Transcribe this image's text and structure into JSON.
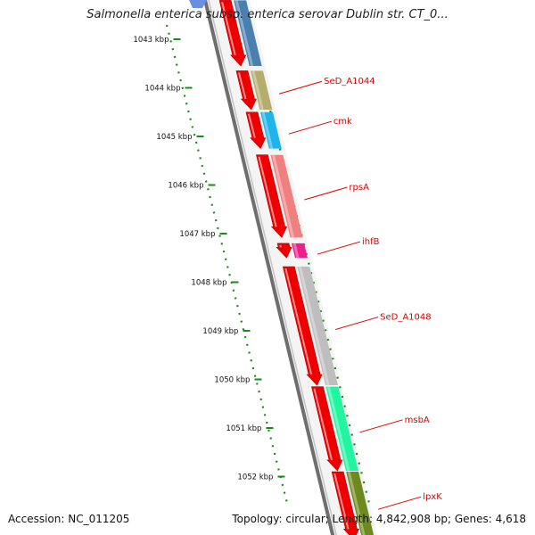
{
  "title": "Salmonella enterica subsp. enterica serovar Dublin str. CT_0...",
  "accession": "Accession: NC_011205",
  "topology": "Topology: circular; Length: 4,842,908 bp; Genes: 4,618",
  "ruler": {
    "unit": "kbp",
    "ticks": [
      "1043 kbp",
      "1044 kbp",
      "1045 kbp",
      "1046 kbp",
      "1047 kbp",
      "1048 kbp",
      "1049 kbp",
      "1050 kbp",
      "1051 kbp",
      "1052 kbp"
    ]
  },
  "genes": [
    {
      "label": "",
      "start": 1042.2,
      "end": 1043.55,
      "color": "#4a7fb0"
    },
    {
      "label": "SeD_A1044",
      "start": 1043.65,
      "end": 1044.45,
      "color": "#b5ad6b"
    },
    {
      "label": "cmk",
      "start": 1044.5,
      "end": 1045.25,
      "color": "#1eb4ec"
    },
    {
      "label": "rpsA",
      "start": 1045.38,
      "end": 1047.08,
      "color": "#f08080"
    },
    {
      "label": "ihfB",
      "start": 1047.2,
      "end": 1047.5,
      "color": "#ee1f8c"
    },
    {
      "label": "SeD_A1048",
      "start": 1047.68,
      "end": 1050.12,
      "color": "#bebebe"
    },
    {
      "label": "msbA",
      "start": 1050.15,
      "end": 1051.88,
      "color": "#22f5a0"
    },
    {
      "label": "lpxK",
      "start": 1051.9,
      "end": 1053.3,
      "color": "#6e8a1e"
    }
  ],
  "orfs": [
    {
      "start": 1042.2,
      "end": 1043.55
    },
    {
      "start": 1043.65,
      "end": 1044.45
    },
    {
      "start": 1044.5,
      "end": 1045.25
    },
    {
      "start": 1045.38,
      "end": 1047.08
    },
    {
      "start": 1047.2,
      "end": 1047.5
    },
    {
      "start": 1047.68,
      "end": 1050.12
    },
    {
      "start": 1050.15,
      "end": 1051.88
    },
    {
      "start": 1051.9,
      "end": 1053.3
    }
  ]
}
